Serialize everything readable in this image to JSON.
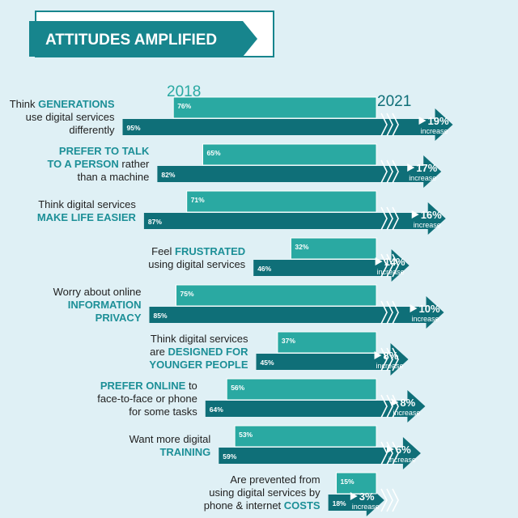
{
  "colors": {
    "background": "#dff0f5",
    "bar_2018": "#2aa9a2",
    "bar_2021": "#0f6f78",
    "banner": "#17858d",
    "keyword": "#1c8f97",
    "year_2018": "#2aa9a2",
    "year_2021": "#0f6f78"
  },
  "chart_data": {
    "type": "bar",
    "title": "ATTITUDES AMPLIFIED",
    "legend": [
      "2018",
      "2021"
    ],
    "increase_word": "increase",
    "rows": [
      {
        "lines": [
          [
            {
              "t": "Think "
            },
            {
              "t": "GENERATIONS",
              "kw": true
            }
          ],
          [
            {
              "t": "use digital services"
            }
          ],
          [
            {
              "t": "differently"
            }
          ]
        ],
        "v2018": 76,
        "v2021": 95,
        "label2018": "76%",
        "label2021": "95%",
        "increase": "19%"
      },
      {
        "lines": [
          [
            {
              "t": "PREFER TO TALK",
              "kw": true
            }
          ],
          [
            {
              "t": "TO A PERSON",
              "kw": true
            },
            {
              "t": " rather"
            }
          ],
          [
            {
              "t": "than a machine"
            }
          ]
        ],
        "v2018": 65,
        "v2021": 82,
        "label2018": "65%",
        "label2021": "82%",
        "increase": "17%"
      },
      {
        "lines": [
          [
            {
              "t": "Think digital services"
            }
          ],
          [
            {
              "t": "MAKE LIFE EASIER",
              "kw": true
            }
          ]
        ],
        "v2018": 71,
        "v2021": 87,
        "label2018": "71%",
        "label2021": "87%",
        "increase": "16%"
      },
      {
        "lines": [
          [
            {
              "t": "Feel "
            },
            {
              "t": "FRUSTRATED",
              "kw": true
            }
          ],
          [
            {
              "t": "using digital services"
            }
          ]
        ],
        "v2018": 32,
        "v2021": 46,
        "label2018": "32%",
        "label2021": "46%",
        "increase": "14%"
      },
      {
        "lines": [
          [
            {
              "t": "Worry about online"
            }
          ],
          [
            {
              "t": "INFORMATION",
              "kw": true
            }
          ],
          [
            {
              "t": "PRIVACY",
              "kw": true
            }
          ]
        ],
        "v2018": 75,
        "v2021": 85,
        "label2018": "75%",
        "label2021": "85%",
        "increase": "10%"
      },
      {
        "lines": [
          [
            {
              "t": "Think digital services"
            }
          ],
          [
            {
              "t": "are "
            },
            {
              "t": "DESIGNED FOR",
              "kw": true
            }
          ],
          [
            {
              "t": "YOUNGER PEOPLE",
              "kw": true
            }
          ]
        ],
        "v2018": 37,
        "v2021": 45,
        "label2018": "37%",
        "label2021": "45%",
        "increase": "8%"
      },
      {
        "lines": [
          [
            {
              "t": "PREFER ONLINE",
              "kw": true
            },
            {
              "t": " to"
            }
          ],
          [
            {
              "t": "face-to-face or phone"
            }
          ],
          [
            {
              "t": "for some tasks"
            }
          ]
        ],
        "v2018": 56,
        "v2021": 64,
        "label2018": "56%",
        "label2021": "64%",
        "increase": "8%"
      },
      {
        "lines": [
          [
            {
              "t": "Want more digital"
            }
          ],
          [
            {
              "t": "TRAINING",
              "kw": true
            }
          ]
        ],
        "v2018": 53,
        "v2021": 59,
        "label2018": "53%",
        "label2021": "59%",
        "increase": "6%"
      },
      {
        "lines": [
          [
            {
              "t": "Are prevented from"
            }
          ],
          [
            {
              "t": "using digital services by"
            }
          ],
          [
            {
              "t": "phone & internet "
            },
            {
              "t": "COSTS",
              "kw": true
            }
          ]
        ],
        "v2018": 15,
        "v2021": 18,
        "label2018": "15%",
        "label2021": "18%",
        "increase": "3%"
      }
    ]
  }
}
